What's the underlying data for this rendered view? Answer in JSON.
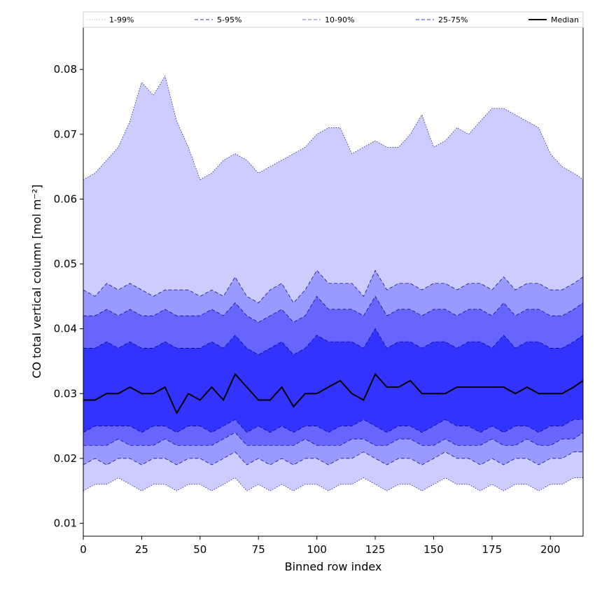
{
  "chart_data": {
    "type": "area",
    "xlabel": "Binned row index",
    "ylabel": "CO total vertical column [mol m⁻²]",
    "xlim": [
      0,
      214
    ],
    "ylim": [
      0.008,
      0.0865
    ],
    "x_ticks": [
      0,
      25,
      50,
      75,
      100,
      125,
      150,
      175,
      200
    ],
    "y_ticks": [
      0.01,
      0.02,
      0.03,
      0.04,
      0.05,
      0.06,
      0.07,
      0.08
    ],
    "x_tick_labels": [
      "0",
      "25",
      "50",
      "75",
      "100",
      "125",
      "150",
      "175",
      "200"
    ],
    "y_tick_labels": [
      "0.01",
      "0.02",
      "0.03",
      "0.04",
      "0.05",
      "0.06",
      "0.07",
      "0.08"
    ],
    "grid": false,
    "legend_position": "top",
    "x": [
      0,
      5,
      10,
      15,
      20,
      25,
      30,
      35,
      40,
      45,
      50,
      55,
      60,
      65,
      70,
      75,
      80,
      85,
      90,
      95,
      100,
      105,
      110,
      115,
      120,
      125,
      130,
      135,
      140,
      145,
      150,
      155,
      160,
      165,
      170,
      175,
      180,
      185,
      190,
      195,
      200,
      205,
      210,
      214
    ],
    "bands": [
      {
        "name": "1-99%",
        "color": "#ccccff",
        "line_color": "#000080",
        "line_style": "dotted",
        "upper": [
          0.063,
          0.064,
          0.066,
          0.068,
          0.072,
          0.078,
          0.076,
          0.079,
          0.072,
          0.068,
          0.063,
          0.064,
          0.066,
          0.067,
          0.066,
          0.064,
          0.065,
          0.066,
          0.067,
          0.068,
          0.07,
          0.071,
          0.071,
          0.067,
          0.068,
          0.069,
          0.068,
          0.068,
          0.07,
          0.073,
          0.068,
          0.069,
          0.071,
          0.07,
          0.072,
          0.074,
          0.074,
          0.073,
          0.072,
          0.071,
          0.067,
          0.065,
          0.064,
          0.063
        ],
        "lower": [
          0.015,
          0.016,
          0.016,
          0.017,
          0.016,
          0.015,
          0.016,
          0.016,
          0.015,
          0.016,
          0.016,
          0.015,
          0.016,
          0.017,
          0.015,
          0.016,
          0.015,
          0.016,
          0.015,
          0.016,
          0.016,
          0.015,
          0.016,
          0.016,
          0.017,
          0.016,
          0.015,
          0.016,
          0.016,
          0.015,
          0.016,
          0.017,
          0.016,
          0.016,
          0.015,
          0.016,
          0.015,
          0.016,
          0.016,
          0.015,
          0.016,
          0.016,
          0.017,
          0.017
        ]
      },
      {
        "name": "5-95%",
        "color": "#9999ff",
        "line_color": "#000080",
        "line_style": "dashed",
        "upper": [
          0.046,
          0.045,
          0.047,
          0.046,
          0.047,
          0.046,
          0.045,
          0.046,
          0.046,
          0.046,
          0.045,
          0.046,
          0.045,
          0.048,
          0.045,
          0.044,
          0.046,
          0.047,
          0.044,
          0.046,
          0.049,
          0.047,
          0.047,
          0.047,
          0.045,
          0.049,
          0.046,
          0.047,
          0.047,
          0.046,
          0.047,
          0.047,
          0.046,
          0.047,
          0.047,
          0.046,
          0.048,
          0.046,
          0.047,
          0.047,
          0.046,
          0.046,
          0.047,
          0.048
        ],
        "lower": [
          0.019,
          0.02,
          0.019,
          0.02,
          0.02,
          0.019,
          0.02,
          0.02,
          0.019,
          0.02,
          0.02,
          0.019,
          0.02,
          0.021,
          0.019,
          0.02,
          0.019,
          0.02,
          0.019,
          0.02,
          0.02,
          0.019,
          0.02,
          0.02,
          0.021,
          0.02,
          0.019,
          0.02,
          0.02,
          0.019,
          0.02,
          0.021,
          0.02,
          0.02,
          0.019,
          0.02,
          0.019,
          0.02,
          0.02,
          0.019,
          0.02,
          0.02,
          0.021,
          0.021
        ]
      },
      {
        "name": "10-90%",
        "color": "#6666ff",
        "line_color": "#000080",
        "line_style": "dashed",
        "upper": [
          0.042,
          0.042,
          0.043,
          0.042,
          0.043,
          0.042,
          0.042,
          0.043,
          0.042,
          0.042,
          0.042,
          0.043,
          0.042,
          0.044,
          0.042,
          0.041,
          0.042,
          0.043,
          0.041,
          0.042,
          0.045,
          0.043,
          0.043,
          0.043,
          0.042,
          0.045,
          0.042,
          0.043,
          0.043,
          0.042,
          0.043,
          0.043,
          0.042,
          0.043,
          0.043,
          0.042,
          0.044,
          0.042,
          0.043,
          0.043,
          0.042,
          0.042,
          0.043,
          0.044
        ],
        "lower": [
          0.022,
          0.022,
          0.022,
          0.023,
          0.022,
          0.022,
          0.022,
          0.023,
          0.022,
          0.022,
          0.022,
          0.022,
          0.023,
          0.024,
          0.022,
          0.022,
          0.022,
          0.022,
          0.022,
          0.023,
          0.022,
          0.022,
          0.022,
          0.023,
          0.023,
          0.022,
          0.022,
          0.023,
          0.023,
          0.022,
          0.022,
          0.023,
          0.022,
          0.022,
          0.022,
          0.023,
          0.022,
          0.022,
          0.023,
          0.022,
          0.022,
          0.023,
          0.023,
          0.024
        ]
      },
      {
        "name": "25-75%",
        "color": "#3333ff",
        "line_color": "#000080",
        "line_style": "dashed",
        "upper": [
          0.037,
          0.037,
          0.038,
          0.037,
          0.038,
          0.037,
          0.037,
          0.038,
          0.037,
          0.037,
          0.037,
          0.038,
          0.037,
          0.039,
          0.037,
          0.036,
          0.037,
          0.038,
          0.036,
          0.037,
          0.039,
          0.038,
          0.038,
          0.038,
          0.037,
          0.04,
          0.037,
          0.038,
          0.038,
          0.037,
          0.038,
          0.038,
          0.037,
          0.038,
          0.038,
          0.037,
          0.039,
          0.037,
          0.038,
          0.038,
          0.037,
          0.037,
          0.038,
          0.039
        ],
        "lower": [
          0.024,
          0.025,
          0.025,
          0.025,
          0.025,
          0.024,
          0.025,
          0.025,
          0.024,
          0.025,
          0.025,
          0.024,
          0.025,
          0.026,
          0.024,
          0.025,
          0.024,
          0.025,
          0.024,
          0.025,
          0.025,
          0.024,
          0.025,
          0.025,
          0.026,
          0.025,
          0.024,
          0.025,
          0.025,
          0.024,
          0.025,
          0.026,
          0.025,
          0.025,
          0.024,
          0.025,
          0.024,
          0.025,
          0.025,
          0.024,
          0.025,
          0.025,
          0.026,
          0.026
        ]
      }
    ],
    "median": {
      "name": "Median",
      "color": "#000000",
      "values": [
        0.029,
        0.029,
        0.03,
        0.03,
        0.031,
        0.03,
        0.03,
        0.031,
        0.027,
        0.03,
        0.029,
        0.031,
        0.029,
        0.033,
        0.031,
        0.029,
        0.029,
        0.031,
        0.028,
        0.03,
        0.03,
        0.031,
        0.032,
        0.03,
        0.029,
        0.033,
        0.031,
        0.031,
        0.032,
        0.03,
        0.03,
        0.03,
        0.031,
        0.031,
        0.031,
        0.031,
        0.031,
        0.03,
        0.031,
        0.03,
        0.03,
        0.03,
        0.031,
        0.032
      ]
    }
  }
}
